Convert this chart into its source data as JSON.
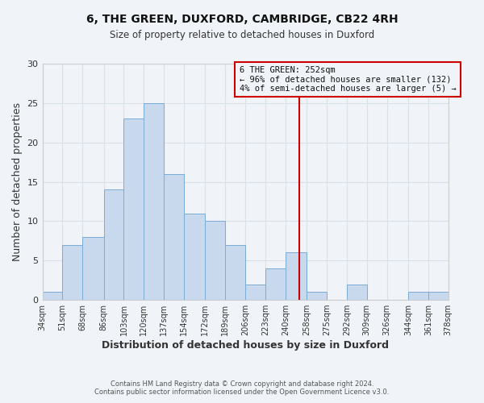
{
  "title": "6, THE GREEN, DUXFORD, CAMBRIDGE, CB22 4RH",
  "subtitle": "Size of property relative to detached houses in Duxford",
  "xlabel": "Distribution of detached houses by size in Duxford",
  "ylabel": "Number of detached properties",
  "bar_color": "#c8d9ed",
  "bar_edge_color": "#7aacd6",
  "grid_color": "#d8e0ea",
  "vline_x": 252,
  "vline_color": "#cc0000",
  "bin_edges": [
    34,
    51,
    68,
    86,
    103,
    120,
    137,
    154,
    172,
    189,
    206,
    223,
    240,
    258,
    275,
    292,
    309,
    326,
    344,
    361,
    378
  ],
  "bin_labels": [
    "34sqm",
    "51sqm",
    "68sqm",
    "86sqm",
    "103sqm",
    "120sqm",
    "137sqm",
    "154sqm",
    "172sqm",
    "189sqm",
    "206sqm",
    "223sqm",
    "240sqm",
    "258sqm",
    "275sqm",
    "292sqm",
    "309sqm",
    "326sqm",
    "344sqm",
    "361sqm",
    "378sqm"
  ],
  "counts": [
    1,
    7,
    8,
    14,
    23,
    25,
    16,
    11,
    10,
    7,
    2,
    4,
    6,
    1,
    0,
    2,
    0,
    0,
    1,
    1
  ],
  "ylim": [
    0,
    30
  ],
  "yticks": [
    0,
    5,
    10,
    15,
    20,
    25,
    30
  ],
  "annotation_title": "6 THE GREEN: 252sqm",
  "annotation_line1": "← 96% of detached houses are smaller (132)",
  "annotation_line2": "4% of semi-detached houses are larger (5) →",
  "footnote1": "Contains HM Land Registry data © Crown copyright and database right 2024.",
  "footnote2": "Contains public sector information licensed under the Open Government Licence v3.0.",
  "background_color": "#f0f4f8"
}
